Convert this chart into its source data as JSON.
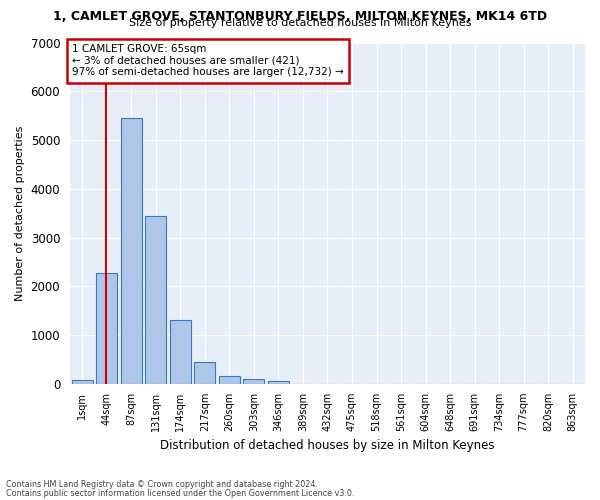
{
  "title_line1": "1, CAMLET GROVE, STANTONBURY FIELDS, MILTON KEYNES, MK14 6TD",
  "title_line2": "Size of property relative to detached houses in Milton Keynes",
  "xlabel": "Distribution of detached houses by size in Milton Keynes",
  "ylabel": "Number of detached properties",
  "bar_color": "#aec6e8",
  "bar_edge_color": "#3a7abf",
  "background_color": "#e8eef8",
  "grid_color": "#ffffff",
  "categories": [
    "1sqm",
    "44sqm",
    "87sqm",
    "131sqm",
    "174sqm",
    "217sqm",
    "260sqm",
    "303sqm",
    "346sqm",
    "389sqm",
    "432sqm",
    "475sqm",
    "518sqm",
    "561sqm",
    "604sqm",
    "648sqm",
    "691sqm",
    "734sqm",
    "777sqm",
    "820sqm",
    "863sqm"
  ],
  "bar_heights": [
    80,
    2280,
    5450,
    3450,
    1310,
    460,
    165,
    100,
    60,
    0,
    0,
    0,
    0,
    0,
    0,
    0,
    0,
    0,
    0,
    0,
    0
  ],
  "ylim": [
    0,
    7000
  ],
  "yticks": [
    0,
    1000,
    2000,
    3000,
    4000,
    5000,
    6000,
    7000
  ],
  "annotation_text_line1": "1 CAMLET GROVE: 65sqm",
  "annotation_text_line2": "← 3% of detached houses are smaller (421)",
  "annotation_text_line3": "97% of semi-detached houses are larger (12,732) →",
  "annotation_box_color": "#ffffff",
  "annotation_box_edge_color": "#cc0000",
  "red_line_color": "#cc0000",
  "footnote1": "Contains HM Land Registry data © Crown copyright and database right 2024.",
  "footnote2": "Contains public sector information licensed under the Open Government Licence v3.0."
}
